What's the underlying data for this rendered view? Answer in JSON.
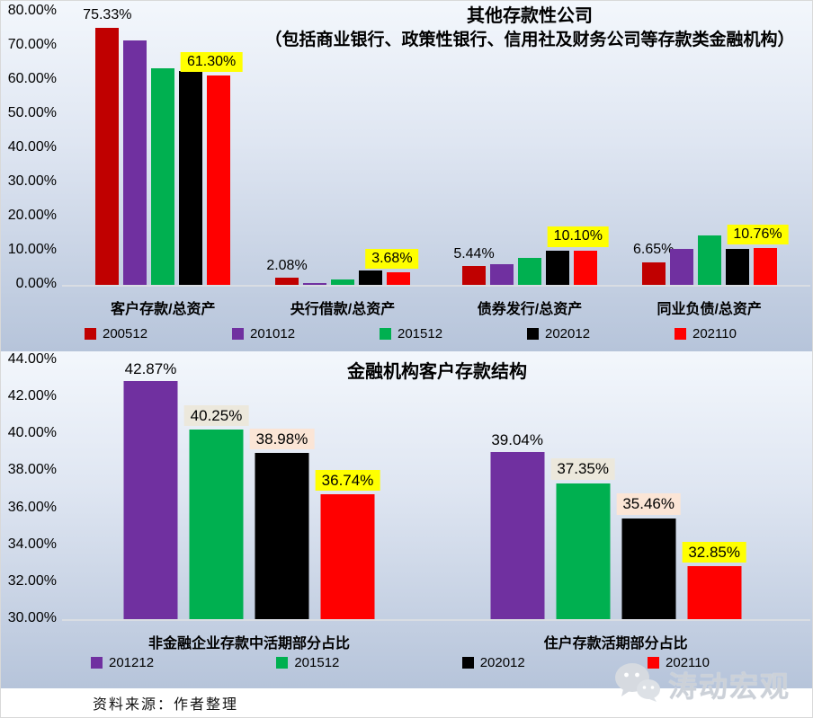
{
  "footer": {
    "source_note": "资料来源：作者整理"
  },
  "watermark": {
    "icon": "wechat-icon",
    "text": "涛动宏观"
  },
  "chart_data": [
    {
      "type": "bar",
      "title": "其他存款性公司",
      "subtitle": "（包括商业银行、政策性银行、信用社及财务公司等存款类金融机构）",
      "ylim": [
        0,
        80
      ],
      "ytick_step": 10,
      "yticks": [
        "80.00%",
        "70.00%",
        "60.00%",
        "50.00%",
        "40.00%",
        "30.00%",
        "20.00%",
        "10.00%",
        "0.00%"
      ],
      "grid": false,
      "legend_position": "bottom",
      "categories": [
        "客户存款/总资产",
        "央行借款/总资产",
        "债券发行/总资产",
        "同业负债/总资产"
      ],
      "series": [
        {
          "name": "200512",
          "color": "#C00000",
          "values": [
            75.33,
            2.08,
            5.44,
            6.65
          ],
          "data_labels": [
            "75.33%",
            "2.08%",
            "5.44%",
            "6.65%"
          ],
          "label_bg": "none"
        },
        {
          "name": "201012",
          "color": "#7030A0",
          "values": [
            71.6,
            0.5,
            6.1,
            10.6
          ],
          "data_labels": null,
          "label_bg": "none"
        },
        {
          "name": "201512",
          "color": "#00B050",
          "values": [
            63.4,
            1.5,
            7.9,
            14.5
          ],
          "data_labels": null,
          "label_bg": "none"
        },
        {
          "name": "202012",
          "color": "#000000",
          "values": [
            62.7,
            4.2,
            9.9,
            10.4
          ],
          "data_labels": null,
          "label_bg": "none"
        },
        {
          "name": "202110",
          "color": "#FF0000",
          "values": [
            61.3,
            3.68,
            10.1,
            10.76
          ],
          "data_labels": [
            "61.30%",
            "3.68%",
            "10.10%",
            "10.76%"
          ],
          "label_bg": "#FFFF00"
        }
      ]
    },
    {
      "type": "bar",
      "title": "金融机构客户存款结构",
      "ylim": [
        30,
        44
      ],
      "ytick_step": 2,
      "yticks": [
        "44.00%",
        "42.00%",
        "40.00%",
        "38.00%",
        "36.00%",
        "34.00%",
        "32.00%",
        "30.00%"
      ],
      "grid": false,
      "legend_position": "bottom",
      "categories": [
        "非金融企业存款中活期部分占比",
        "住户存款活期部分占比"
      ],
      "series": [
        {
          "name": "201212",
          "color": "#7030A0",
          "values": [
            42.87,
            39.04
          ],
          "data_labels": [
            "42.87%",
            "39.04%"
          ],
          "label_bg": "none"
        },
        {
          "name": "201512",
          "color": "#00B050",
          "values": [
            40.25,
            37.35
          ],
          "data_labels": [
            "40.25%",
            "37.35%"
          ],
          "label_bg": "#ECE8DC"
        },
        {
          "name": "202012",
          "color": "#000000",
          "values": [
            38.98,
            35.46
          ],
          "data_labels": [
            "38.98%",
            "35.46%"
          ],
          "label_bg": "#FBE5D6"
        },
        {
          "name": "202110",
          "color": "#FF0000",
          "values": [
            36.74,
            32.85
          ],
          "data_labels": [
            "36.74%",
            "32.85%"
          ],
          "label_bg": "#FFFF00"
        }
      ]
    }
  ]
}
